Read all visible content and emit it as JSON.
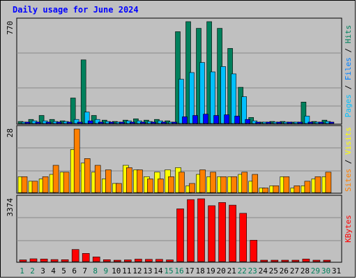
{
  "chart_data": [
    {
      "type": "bar",
      "title": "Daily usage for June 2024",
      "categories": [
        "1",
        "2",
        "3",
        "4",
        "5",
        "6",
        "7",
        "8",
        "9",
        "10",
        "11",
        "12",
        "13",
        "14",
        "15",
        "16",
        "17",
        "18",
        "19",
        "20",
        "21",
        "22",
        "23",
        "24",
        "25",
        "26",
        "27",
        "28",
        "29",
        "30",
        "31"
      ],
      "weekend_categories": [
        "1",
        "2",
        "8",
        "9",
        "15",
        "16",
        "22",
        "23",
        "29",
        "30"
      ],
      "ymax_label": "770",
      "legend": [
        "Pages",
        "Files",
        "Hits"
      ],
      "series": [
        {
          "name": "Hits",
          "color": "#00805c",
          "values": [
            15,
            30,
            60,
            30,
            20,
            190,
            475,
            60,
            25,
            15,
            25,
            35,
            25,
            30,
            20,
            685,
            760,
            710,
            760,
            710,
            560,
            270,
            45,
            10,
            15,
            15,
            10,
            160,
            15,
            25,
            0
          ]
        },
        {
          "name": "Files",
          "color": "#00c0ff",
          "values": [
            10,
            20,
            20,
            15,
            15,
            30,
            85,
            30,
            15,
            10,
            20,
            20,
            15,
            20,
            10,
            330,
            380,
            455,
            385,
            425,
            370,
            200,
            20,
            5,
            10,
            10,
            5,
            55,
            10,
            15,
            0
          ]
        },
        {
          "name": "Pages",
          "color": "#0000ff",
          "values": [
            5,
            10,
            8,
            5,
            5,
            10,
            20,
            10,
            5,
            5,
            8,
            8,
            5,
            8,
            5,
            50,
            60,
            70,
            60,
            65,
            55,
            30,
            8,
            2,
            3,
            3,
            2,
            10,
            3,
            5,
            0
          ]
        }
      ]
    },
    {
      "type": "bar",
      "ymax_label": "28",
      "legend": [
        "Sites",
        "Visits"
      ],
      "series": [
        {
          "name": "Visits",
          "color": "#ffff00",
          "values": [
            7,
            5,
            6,
            8,
            9,
            19,
            13,
            9,
            6,
            4,
            12,
            10,
            7,
            9,
            10,
            11,
            3,
            8,
            7,
            7,
            7,
            8,
            5,
            2,
            3,
            7,
            2,
            3,
            6,
            7,
            0
          ]
        },
        {
          "name": "Sites",
          "color": "#ff8000",
          "values": [
            7,
            5,
            7,
            12,
            9,
            28,
            15,
            12,
            10,
            4,
            11,
            10,
            6,
            6,
            7,
            9,
            4,
            10,
            9,
            7,
            7,
            9,
            8,
            2,
            3,
            7,
            3,
            5,
            7,
            9,
            0
          ]
        }
      ]
    },
    {
      "type": "bar",
      "ymax_label": "3374",
      "legend": [
        "KBytes"
      ],
      "series": [
        {
          "name": "KBytes",
          "color": "#ff0000",
          "values": [
            90,
            150,
            140,
            110,
            100,
            650,
            440,
            250,
            100,
            70,
            90,
            130,
            120,
            120,
            90,
            2840,
            3340,
            3380,
            3010,
            3180,
            3040,
            2600,
            1150,
            40,
            40,
            40,
            50,
            140,
            60,
            60,
            0
          ]
        }
      ]
    }
  ]
}
